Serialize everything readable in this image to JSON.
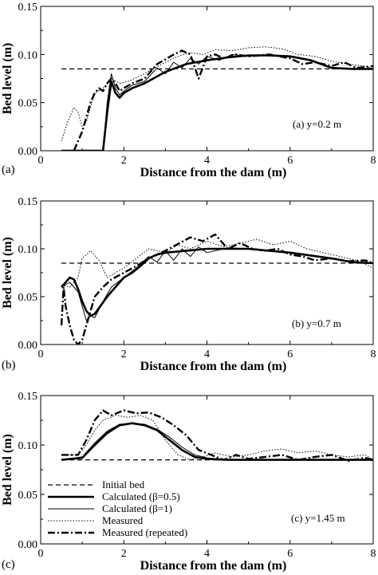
{
  "figure": {
    "panel_letters": [
      "(a)",
      "(b)",
      "(c)"
    ],
    "annotations": [
      "(a) y=0.2 m",
      "(b) y=0.7 m",
      "(c) y=1.45 m"
    ]
  },
  "legend": {
    "entries": [
      {
        "label": "Initial bed",
        "style": "dashed"
      },
      {
        "label": "Calculated (β=0.5)",
        "style": "thick"
      },
      {
        "label": "Calculated (β=1)",
        "style": "thin"
      },
      {
        "label": "Measured",
        "style": "dotted"
      },
      {
        "label": "Measured (repeated)",
        "style": "dashdot"
      }
    ]
  },
  "chart_data": [
    {
      "type": "line",
      "panel": "(a)",
      "annotation": "(a) y=0.2 m",
      "xlabel": "Distance from the dam (m)",
      "ylabel": "Bed level (m)",
      "xlim": [
        0,
        8
      ],
      "ylim": [
        0,
        0.15
      ],
      "xticks": [
        "0",
        "2",
        "4",
        "6",
        "8"
      ],
      "yticks": [
        "0.00",
        "0.05",
        "0.10",
        "0.15"
      ],
      "series": [
        {
          "name": "Initial bed",
          "style": "dashed",
          "x": [
            0.5,
            8
          ],
          "y": [
            0.085,
            0.085
          ]
        },
        {
          "name": "Calculated (β=0.5)",
          "style": "thick",
          "x": [
            0.5,
            1.5,
            1.6,
            1.7,
            1.8,
            1.9,
            2.0,
            2.2,
            2.5,
            3.0,
            3.5,
            4.0,
            4.5,
            5.0,
            5.5,
            6.0,
            6.5,
            7.0,
            7.5,
            8.0
          ],
          "y": [
            0.0,
            0.0,
            0.04,
            0.072,
            0.06,
            0.055,
            0.06,
            0.065,
            0.07,
            0.082,
            0.09,
            0.094,
            0.097,
            0.099,
            0.099,
            0.098,
            0.094,
            0.086,
            0.085,
            0.085
          ]
        },
        {
          "name": "Calculated (β=1)",
          "style": "thin",
          "x": [
            1.5,
            1.6,
            1.7,
            1.8,
            1.9,
            2.0,
            2.2,
            2.5,
            2.8,
            3.0,
            3.2,
            3.4,
            3.6,
            3.8,
            4.0,
            4.3,
            4.6,
            5.0,
            5.5,
            6.0,
            6.5,
            7.0,
            7.5,
            8.0
          ],
          "y": [
            0.0,
            0.05,
            0.08,
            0.065,
            0.058,
            0.062,
            0.068,
            0.072,
            0.086,
            0.08,
            0.092,
            0.086,
            0.096,
            0.09,
            0.098,
            0.094,
            0.1,
            0.098,
            0.1,
            0.098,
            0.094,
            0.086,
            0.085,
            0.085
          ]
        },
        {
          "name": "Measured",
          "style": "dotted",
          "x": [
            0.5,
            0.65,
            0.8,
            0.9,
            1.0,
            1.1,
            1.2,
            1.3,
            1.5,
            1.7,
            1.9,
            2.1,
            2.4,
            2.7,
            3.0,
            3.3,
            3.6,
            3.9,
            4.2,
            4.6,
            5.0,
            5.4,
            5.8,
            6.2,
            6.6,
            7.0,
            7.4,
            7.8,
            8.0
          ],
          "y": [
            0.01,
            0.03,
            0.045,
            0.04,
            0.025,
            0.03,
            0.045,
            0.06,
            0.065,
            0.075,
            0.07,
            0.072,
            0.078,
            0.085,
            0.092,
            0.098,
            0.102,
            0.1,
            0.105,
            0.104,
            0.107,
            0.108,
            0.106,
            0.1,
            0.098,
            0.093,
            0.09,
            0.088,
            0.085
          ]
        },
        {
          "name": "Measured (repeated)",
          "style": "dashdot",
          "x": [
            0.8,
            0.9,
            1.0,
            1.1,
            1.2,
            1.3,
            1.4,
            1.5,
            1.6,
            1.7,
            1.8,
            1.9,
            2.0,
            2.2,
            2.5,
            2.8,
            3.0,
            3.2,
            3.4,
            3.6,
            3.8,
            4.0,
            4.2,
            4.4,
            4.7,
            5.0,
            5.5,
            6.0,
            6.3,
            6.6,
            7.0,
            7.3,
            7.6,
            8.0
          ],
          "y": [
            0.0,
            0.01,
            0.02,
            0.035,
            0.05,
            0.06,
            0.065,
            0.062,
            0.07,
            0.075,
            0.07,
            0.062,
            0.065,
            0.07,
            0.075,
            0.09,
            0.095,
            0.1,
            0.104,
            0.1,
            0.075,
            0.098,
            0.1,
            0.096,
            0.1,
            0.098,
            0.1,
            0.096,
            0.09,
            0.092,
            0.088,
            0.092,
            0.086,
            0.088
          ]
        }
      ]
    },
    {
      "type": "line",
      "panel": "(b)",
      "annotation": "(b) y=0.7 m",
      "xlabel": "Distance from the dam (m)",
      "ylabel": "Bed level (m)",
      "xlim": [
        0,
        8
      ],
      "ylim": [
        0,
        0.15
      ],
      "xticks": [
        "0",
        "2",
        "4",
        "6",
        "8"
      ],
      "yticks": [
        "0.00",
        "0.05",
        "0.10",
        "0.15"
      ],
      "series": [
        {
          "name": "Initial bed",
          "style": "dashed",
          "x": [
            0.5,
            8
          ],
          "y": [
            0.085,
            0.085
          ]
        },
        {
          "name": "Calculated (β=0.5)",
          "style": "thick",
          "x": [
            0.5,
            0.6,
            0.7,
            0.8,
            0.9,
            1.0,
            1.1,
            1.2,
            1.3,
            1.4,
            1.6,
            1.8,
            2.0,
            2.2,
            2.4,
            2.6,
            2.8,
            3.0,
            3.5,
            4.0,
            4.5,
            5.0,
            5.5,
            6.0,
            6.5,
            7.0,
            7.5,
            8.0
          ],
          "y": [
            0.06,
            0.065,
            0.07,
            0.068,
            0.058,
            0.045,
            0.035,
            0.03,
            0.032,
            0.038,
            0.05,
            0.06,
            0.07,
            0.075,
            0.082,
            0.09,
            0.094,
            0.096,
            0.098,
            0.1,
            0.1,
            0.1,
            0.098,
            0.096,
            0.093,
            0.09,
            0.086,
            0.085
          ]
        },
        {
          "name": "Calculated (β=1)",
          "style": "thin",
          "x": [
            0.5,
            0.7,
            0.9,
            1.0,
            1.1,
            1.2,
            1.3,
            1.5,
            1.7,
            2.0,
            2.3,
            2.6,
            2.8,
            3.0,
            3.2,
            3.4,
            3.6,
            3.8,
            4.0,
            4.5,
            5.0,
            5.5,
            6.0,
            6.5,
            7.0,
            7.5,
            8.0
          ],
          "y": [
            0.06,
            0.065,
            0.055,
            0.04,
            0.025,
            0.03,
            0.028,
            0.045,
            0.06,
            0.07,
            0.08,
            0.092,
            0.086,
            0.098,
            0.088,
            0.1,
            0.092,
            0.102,
            0.096,
            0.101,
            0.1,
            0.098,
            0.096,
            0.093,
            0.09,
            0.087,
            0.085
          ]
        },
        {
          "name": "Measured",
          "style": "dotted",
          "x": [
            0.5,
            0.7,
            0.9,
            1.0,
            1.2,
            1.4,
            1.6,
            1.8,
            2.0,
            2.3,
            2.6,
            3.0,
            3.3,
            3.6,
            4.0,
            4.4,
            4.8,
            5.2,
            5.6,
            6.0,
            6.4,
            6.8,
            7.2,
            7.6,
            8.0
          ],
          "y": [
            0.062,
            0.06,
            0.07,
            0.09,
            0.098,
            0.088,
            0.07,
            0.075,
            0.08,
            0.09,
            0.1,
            0.096,
            0.104,
            0.1,
            0.108,
            0.102,
            0.106,
            0.11,
            0.104,
            0.108,
            0.1,
            0.096,
            0.092,
            0.088,
            0.08
          ]
        },
        {
          "name": "Measured (repeated)",
          "style": "dashdot",
          "x": [
            0.5,
            0.55,
            0.6,
            0.7,
            0.8,
            0.9,
            1.0,
            1.1,
            1.2,
            1.3,
            1.5,
            1.7,
            2.0,
            2.3,
            2.6,
            2.8,
            3.0,
            3.3,
            3.6,
            3.9,
            4.2,
            4.5,
            4.8,
            5.1,
            5.4,
            5.7,
            6.0,
            6.3,
            6.6,
            7.0,
            7.4,
            7.8,
            8.0
          ],
          "y": [
            0.02,
            0.06,
            0.04,
            0.02,
            0.005,
            0.0,
            0.005,
            0.02,
            0.035,
            0.05,
            0.06,
            0.068,
            0.075,
            0.082,
            0.09,
            0.094,
            0.098,
            0.105,
            0.112,
            0.108,
            0.115,
            0.1,
            0.106,
            0.1,
            0.098,
            0.1,
            0.094,
            0.092,
            0.088,
            0.09,
            0.087,
            0.088,
            0.085
          ]
        }
      ]
    },
    {
      "type": "line",
      "panel": "(c)",
      "annotation": "(c) y=1.45 m",
      "xlabel": "Distance from the dam (m)",
      "ylabel": "Bed level (m)",
      "xlim": [
        0,
        8
      ],
      "ylim": [
        0,
        0.15
      ],
      "xticks": [
        "0",
        "2",
        "4",
        "6",
        "8"
      ],
      "yticks": [
        "0.00",
        "0.05",
        "0.10",
        "0.15"
      ],
      "series": [
        {
          "name": "Initial bed",
          "style": "dashed",
          "x": [
            0.5,
            8
          ],
          "y": [
            0.085,
            0.085
          ]
        },
        {
          "name": "Calculated (β=0.5)",
          "style": "thick",
          "x": [
            0.5,
            1.0,
            1.3,
            1.6,
            1.9,
            2.2,
            2.5,
            2.8,
            3.1,
            3.4,
            3.7,
            4.0,
            4.5,
            5.0,
            6.0,
            7.0,
            8.0
          ],
          "y": [
            0.085,
            0.087,
            0.1,
            0.112,
            0.12,
            0.122,
            0.12,
            0.115,
            0.105,
            0.095,
            0.088,
            0.086,
            0.085,
            0.085,
            0.085,
            0.085,
            0.085
          ]
        },
        {
          "name": "Calculated (β=1)",
          "style": "thin",
          "x": [
            0.5,
            1.0,
            1.3,
            1.6,
            1.9,
            2.2,
            2.5,
            2.8,
            3.1,
            3.4,
            3.7,
            4.0,
            4.5,
            5.0,
            6.0,
            7.0,
            8.0
          ],
          "y": [
            0.085,
            0.088,
            0.102,
            0.114,
            0.121,
            0.122,
            0.121,
            0.116,
            0.108,
            0.098,
            0.09,
            0.087,
            0.085,
            0.085,
            0.085,
            0.085,
            0.085
          ]
        },
        {
          "name": "Measured",
          "style": "dotted",
          "x": [
            0.5,
            0.9,
            1.1,
            1.3,
            1.5,
            1.8,
            2.1,
            2.4,
            2.7,
            3.0,
            3.3,
            3.6,
            3.9,
            4.2,
            4.6,
            5.0,
            5.4,
            5.8,
            6.2,
            6.6,
            7.0,
            7.4,
            7.8,
            8.0
          ],
          "y": [
            0.09,
            0.09,
            0.1,
            0.115,
            0.125,
            0.13,
            0.128,
            0.13,
            0.125,
            0.105,
            0.09,
            0.085,
            0.088,
            0.092,
            0.088,
            0.09,
            0.094,
            0.096,
            0.092,
            0.094,
            0.09,
            0.088,
            0.09,
            0.085
          ]
        },
        {
          "name": "Measured (repeated)",
          "style": "dashdot",
          "x": [
            0.5,
            0.9,
            1.1,
            1.3,
            1.5,
            1.7,
            2.0,
            2.3,
            2.6,
            2.9,
            3.2,
            3.5,
            3.8,
            4.1,
            4.4,
            4.7,
            5.0,
            5.4,
            5.8,
            6.2,
            6.6,
            7.0,
            7.4,
            7.8,
            8.0
          ],
          "y": [
            0.09,
            0.09,
            0.105,
            0.125,
            0.135,
            0.13,
            0.135,
            0.132,
            0.133,
            0.128,
            0.12,
            0.11,
            0.095,
            0.09,
            0.085,
            0.09,
            0.086,
            0.088,
            0.09,
            0.085,
            0.088,
            0.09,
            0.084,
            0.087,
            0.085
          ]
        }
      ]
    }
  ]
}
